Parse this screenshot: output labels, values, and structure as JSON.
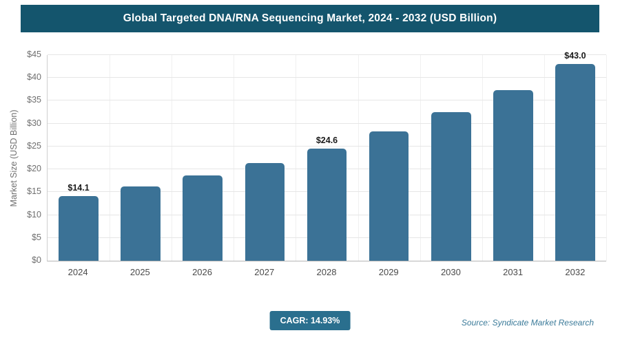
{
  "header": {
    "title": "Global Targeted DNA/RNA Sequencing Market, 2024 - 2032 (USD Billion)"
  },
  "chart_data": {
    "type": "bar",
    "title": "Global Targeted DNA/RNA Sequencing Market, 2024 - 2032 (USD Billion)",
    "categories": [
      "2024",
      "2025",
      "2026",
      "2027",
      "2028",
      "2029",
      "2030",
      "2031",
      "2032"
    ],
    "values": [
      14.1,
      16.2,
      18.6,
      21.4,
      24.6,
      28.3,
      32.5,
      37.3,
      43.0
    ],
    "bar_labels": [
      "$14.1",
      "",
      "",
      "",
      "$24.6",
      "",
      "",
      "",
      "$43.0"
    ],
    "xlabel": "",
    "ylabel": "Market Size (USD Billion)",
    "ylim": [
      0,
      45
    ],
    "ytick_step": 5,
    "ytick_prefix": "$",
    "grid": true,
    "legend": "none",
    "bar_color": "#3b7296"
  },
  "footer": {
    "cagr": "CAGR: 14.93%",
    "source": "Source: Syndicate Market Research"
  },
  "colors": {
    "header_bg": "#14556d",
    "bar": "#3b7296",
    "badge_bg": "#2a6f8e",
    "source_text": "#3a7a99"
  }
}
